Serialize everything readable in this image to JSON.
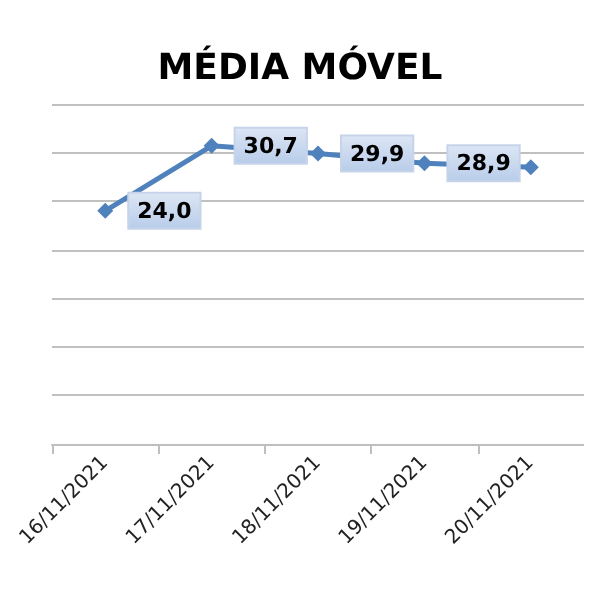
{
  "chart_data": {
    "type": "line",
    "title": "MÉDIA MÓVEL",
    "categories": [
      "16/11/2021",
      "17/11/2021",
      "18/11/2021",
      "19/11/2021",
      "20/11/2021"
    ],
    "series": [
      {
        "color": "#4f81bd",
        "values": [
          24.0,
          30.7,
          29.9,
          28.9,
          28.5
        ],
        "value_labels": [
          "24,0",
          "30,7",
          "29,9",
          "28,9",
          null
        ]
      }
    ],
    "ylim": [
      0,
      35
    ],
    "yticks": [
      {
        "value": 0,
        "label": null
      },
      {
        "value": 5,
        "label": null
      },
      {
        "value": 10,
        "label": null
      },
      {
        "value": 15,
        "label": null
      },
      {
        "value": 20,
        "label": null
      },
      {
        "value": 25,
        "label": null
      },
      {
        "value": 30,
        "label": null
      },
      {
        "value": 35,
        "label": null
      }
    ],
    "grid": "y",
    "tick_labels": "x",
    "marker": "diamond",
    "line_style": "solid"
  }
}
